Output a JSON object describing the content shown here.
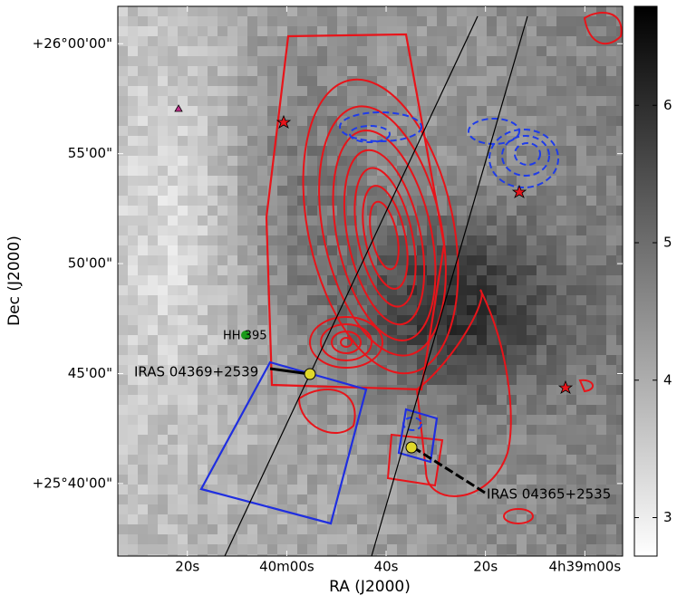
{
  "chart_data": {
    "type": "image",
    "xlabel": "RA (J2000)",
    "ylabel": "Dec (J2000)",
    "xlim": [
      16834,
      16732.4
    ],
    "xticks": [
      {
        "value": 16820,
        "label": "20s"
      },
      {
        "value": 16800,
        "label": "40m00s"
      },
      {
        "value": 16780,
        "label": "40s"
      },
      {
        "value": 16760,
        "label": "20s"
      },
      {
        "value": 16740,
        "label": "4h39m00s"
      }
    ],
    "ylim": [
      1536.7,
      1561.7
    ],
    "yticks": [
      {
        "value": 1560,
        "label": "+26°00'00\""
      },
      {
        "value": 1555,
        "label": "55'00\""
      },
      {
        "value": 1550,
        "label": "50'00\""
      },
      {
        "value": 1545,
        "label": "45'00\""
      },
      {
        "value": 1540,
        "label": "+25°40'00\""
      }
    ],
    "clim": [
      2.72,
      6.72
    ],
    "cticks": [
      3,
      4,
      5,
      6
    ],
    "annotations": [
      "HH 395",
      "IRAS 04369+2539",
      "IRAS 04365+2535"
    ]
  }
}
